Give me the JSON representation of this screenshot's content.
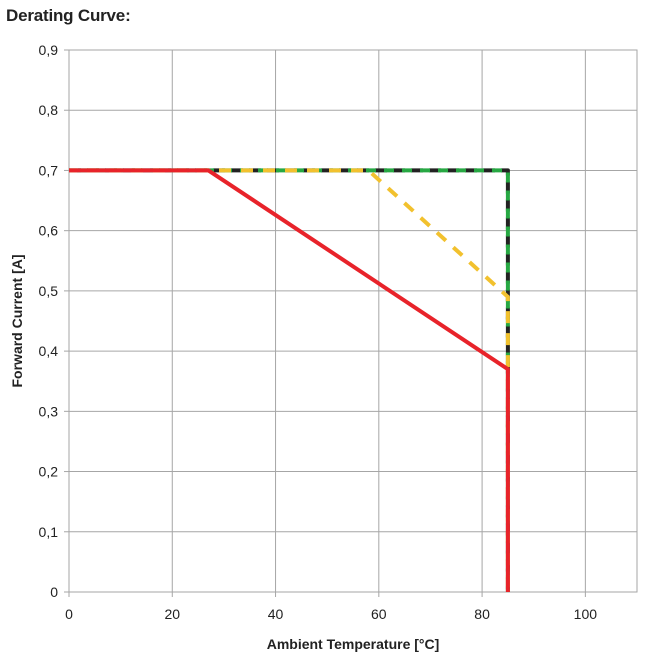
{
  "page_title": "Derating Curve:",
  "chart_data": {
    "type": "line",
    "title": "",
    "xlabel": "Ambient Temperature [°C]",
    "ylabel": "Forward Current [A]",
    "xlim": [
      0,
      110
    ],
    "ylim": [
      0,
      0.9
    ],
    "x_ticks": [
      0,
      20,
      40,
      60,
      80,
      100
    ],
    "x_tick_labels": [
      "0",
      "20",
      "40",
      "60",
      "80",
      "100"
    ],
    "y_ticks": [
      0,
      0.1,
      0.2,
      0.3,
      0.4,
      0.5,
      0.6,
      0.7,
      0.8,
      0.9
    ],
    "y_tick_labels": [
      "0",
      "0,1",
      "0,2",
      "0,3",
      "0,4",
      "0,5",
      "0,6",
      "0,7",
      "0,8",
      "0,9"
    ],
    "grid": true,
    "legend": "none",
    "series": [
      {
        "color": "#222222",
        "dash": "dashed",
        "points": [
          [
            0,
            0.7
          ],
          [
            85,
            0.7
          ],
          [
            85,
            0
          ]
        ]
      },
      {
        "color": "#27a843",
        "dash": "dashed",
        "points": [
          [
            0,
            0.7
          ],
          [
            85,
            0.7
          ],
          [
            85,
            0
          ]
        ]
      },
      {
        "color": "#f2c12e",
        "dash": "dashed",
        "points": [
          [
            0,
            0.7
          ],
          [
            58,
            0.7
          ],
          [
            85,
            0.49
          ],
          [
            85,
            0
          ]
        ]
      },
      {
        "color": "#e8232a",
        "dash": "solid",
        "points": [
          [
            0,
            0.7
          ],
          [
            27,
            0.7
          ],
          [
            85,
            0.37
          ],
          [
            85,
            0
          ]
        ]
      }
    ]
  }
}
